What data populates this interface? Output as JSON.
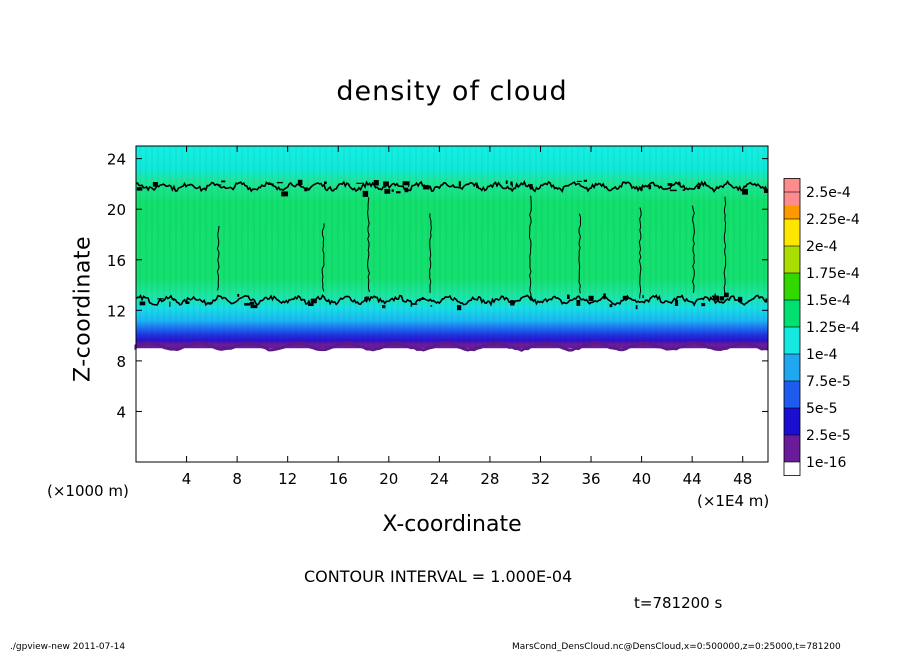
{
  "chart_data": {
    "type": "heatmap",
    "title": "density of cloud",
    "xlabel": "X-coordinate",
    "ylabel": "Z-coordinate",
    "x_unit_label": "(×1E4 m)",
    "y_unit_label": "(×1000 m)",
    "xlim": [
      0,
      50
    ],
    "ylim": [
      0,
      25
    ],
    "x_ticks": [
      4,
      8,
      12,
      16,
      20,
      24,
      28,
      32,
      36,
      40,
      44,
      48
    ],
    "y_ticks": [
      4,
      8,
      12,
      16,
      20,
      24
    ],
    "cloud_layer": {
      "z_bottom": 9.0,
      "z_top": 25.0,
      "contour_levels_z": [
        12.8,
        21.8
      ]
    },
    "colorbar": {
      "levels": [
        "1e-16",
        "2.5e-5",
        "5e-5",
        "7.5e-5",
        "1e-4",
        "1.25e-4",
        "1.5e-4",
        "1.75e-4",
        "2e-4",
        "2.25e-4",
        "2.5e-4"
      ],
      "colors": [
        "#6a1b9a",
        "#1a0fd0",
        "#1e5cf0",
        "#1fa8f0",
        "#14e8e0",
        "#00e070",
        "#33d800",
        "#aadd00",
        "#ffe600",
        "#ff9900",
        "#ff3b1f",
        "#ff8c8c"
      ]
    }
  },
  "annotations": {
    "contour_interval": "CONTOUR INTERVAL = 1.000E-04",
    "time": "t=781200 s",
    "footer_left": "./gpview-new  2011-07-14",
    "footer_right": "MarsCond_DensCloud.nc@DensCloud,x=0:500000,z=0:25000,t=781200"
  }
}
